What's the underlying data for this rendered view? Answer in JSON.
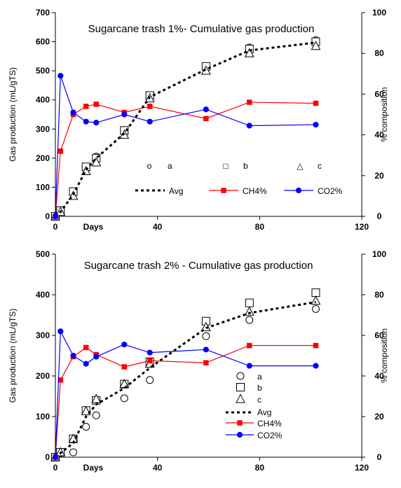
{
  "colors": {
    "ch4": "#ff0000",
    "co2": "#0000ff",
    "avg": "#000000"
  },
  "chart_data": [
    {
      "type": "line",
      "title": "Sugarcane trash 1%- Cumulative gas production",
      "xlabel": "Days",
      "ylabel": "Gas production (mL/gTS)",
      "y2label": "% composition",
      "xlim": [
        0,
        120
      ],
      "ylim": [
        0,
        700
      ],
      "y2lim": [
        0,
        100
      ],
      "xticks": [
        "0",
        "40",
        "80",
        "120"
      ],
      "yticks": [
        "0",
        "100",
        "200",
        "300",
        "400",
        "500",
        "600",
        "700"
      ],
      "y2ticks": [
        "0",
        "20",
        "40",
        "60",
        "80",
        "100"
      ],
      "legend_row1": [
        {
          "name": "a",
          "marker": "o"
        },
        {
          "name": "b",
          "marker": "□"
        },
        {
          "name": "c",
          "marker": "△"
        }
      ],
      "series": [
        {
          "name": "a",
          "axis": "left",
          "marker": "circle",
          "x": [
            0,
            2,
            7,
            12,
            16,
            27,
            37,
            59,
            76,
            102
          ],
          "y": [
            0,
            20,
            80,
            165,
            205,
            290,
            415,
            515,
            580,
            605
          ]
        },
        {
          "name": "b",
          "axis": "left",
          "marker": "square",
          "x": [
            0,
            2,
            7,
            12,
            16,
            27,
            37,
            59,
            76,
            102
          ],
          "y": [
            0,
            20,
            85,
            170,
            200,
            295,
            415,
            515,
            575,
            600
          ]
        },
        {
          "name": "c",
          "axis": "left",
          "marker": "triangle",
          "x": [
            0,
            2,
            7,
            12,
            16,
            27,
            37,
            59,
            76,
            102
          ],
          "y": [
            0,
            15,
            70,
            155,
            185,
            280,
            405,
            500,
            560,
            585
          ]
        },
        {
          "name": "Avg",
          "axis": "left",
          "marker": "none",
          "x": [
            0,
            2,
            7,
            12,
            16,
            27,
            37,
            59,
            76,
            102
          ],
          "y": [
            0,
            15,
            75,
            160,
            200,
            285,
            410,
            505,
            570,
            597
          ]
        },
        {
          "name": "CH4%",
          "axis": "right",
          "marker": "square",
          "x": [
            0,
            2,
            7,
            12,
            16,
            27,
            37,
            59,
            76,
            102
          ],
          "y": [
            0,
            32,
            50,
            54,
            55,
            51,
            54,
            48,
            56,
            55.5
          ]
        },
        {
          "name": "CO2%",
          "axis": "right",
          "marker": "circle",
          "x": [
            0,
            2,
            7,
            12,
            16,
            27,
            37,
            59,
            76,
            102
          ],
          "y": [
            0,
            69,
            51,
            46.5,
            46,
            50,
            46.5,
            52.5,
            44.5,
            45
          ]
        }
      ]
    },
    {
      "type": "line",
      "title": "Sugarcane trash 2% - Cumulative gas production",
      "xlabel": "Days",
      "ylabel": "Gas production (mL/gTS)",
      "y2label": "% composition",
      "xlim": [
        0,
        120
      ],
      "ylim": [
        0,
        500
      ],
      "y2lim": [
        0,
        100
      ],
      "xticks": [
        "0",
        "40",
        "80",
        "120"
      ],
      "yticks": [
        "0",
        "100",
        "200",
        "300",
        "400",
        "500"
      ],
      "y2ticks": [
        "0",
        "20",
        "40",
        "60",
        "80",
        "100"
      ],
      "series": [
        {
          "name": "a",
          "axis": "left",
          "marker": "circle",
          "x": [
            0,
            2,
            7,
            12,
            16,
            27,
            37,
            59,
            76,
            102
          ],
          "y": [
            0,
            10,
            12,
            75,
            103,
            145,
            190,
            298,
            338,
            365
          ]
        },
        {
          "name": "b",
          "axis": "left",
          "marker": "square",
          "x": [
            0,
            2,
            7,
            12,
            16,
            27,
            37,
            59,
            76,
            102
          ],
          "y": [
            0,
            12,
            45,
            115,
            140,
            180,
            235,
            335,
            380,
            405
          ]
        },
        {
          "name": "c",
          "axis": "left",
          "marker": "triangle",
          "x": [
            0,
            2,
            7,
            12,
            16,
            27,
            37,
            59,
            76,
            102
          ],
          "y": [
            0,
            12,
            45,
            113,
            143,
            180,
            230,
            320,
            358,
            385
          ]
        },
        {
          "name": "Avg",
          "axis": "left",
          "marker": "none",
          "x": [
            0,
            2,
            7,
            12,
            16,
            27,
            37,
            59,
            76,
            102
          ],
          "y": [
            0,
            10,
            35,
            100,
            130,
            170,
            220,
            318,
            355,
            382
          ]
        },
        {
          "name": "CH4%",
          "axis": "right",
          "marker": "square",
          "x": [
            0,
            2,
            7,
            12,
            16,
            27,
            37,
            59,
            76,
            102
          ],
          "y": [
            0,
            38,
            49.5,
            54,
            50.5,
            44.5,
            47.5,
            46.5,
            55,
            55
          ]
        },
        {
          "name": "CO2%",
          "axis": "right",
          "marker": "circle",
          "x": [
            0,
            2,
            7,
            12,
            16,
            27,
            37,
            59,
            76,
            102
          ],
          "y": [
            0,
            62,
            50,
            46,
            49.5,
            55.5,
            51.5,
            53,
            45,
            45
          ]
        }
      ]
    }
  ]
}
